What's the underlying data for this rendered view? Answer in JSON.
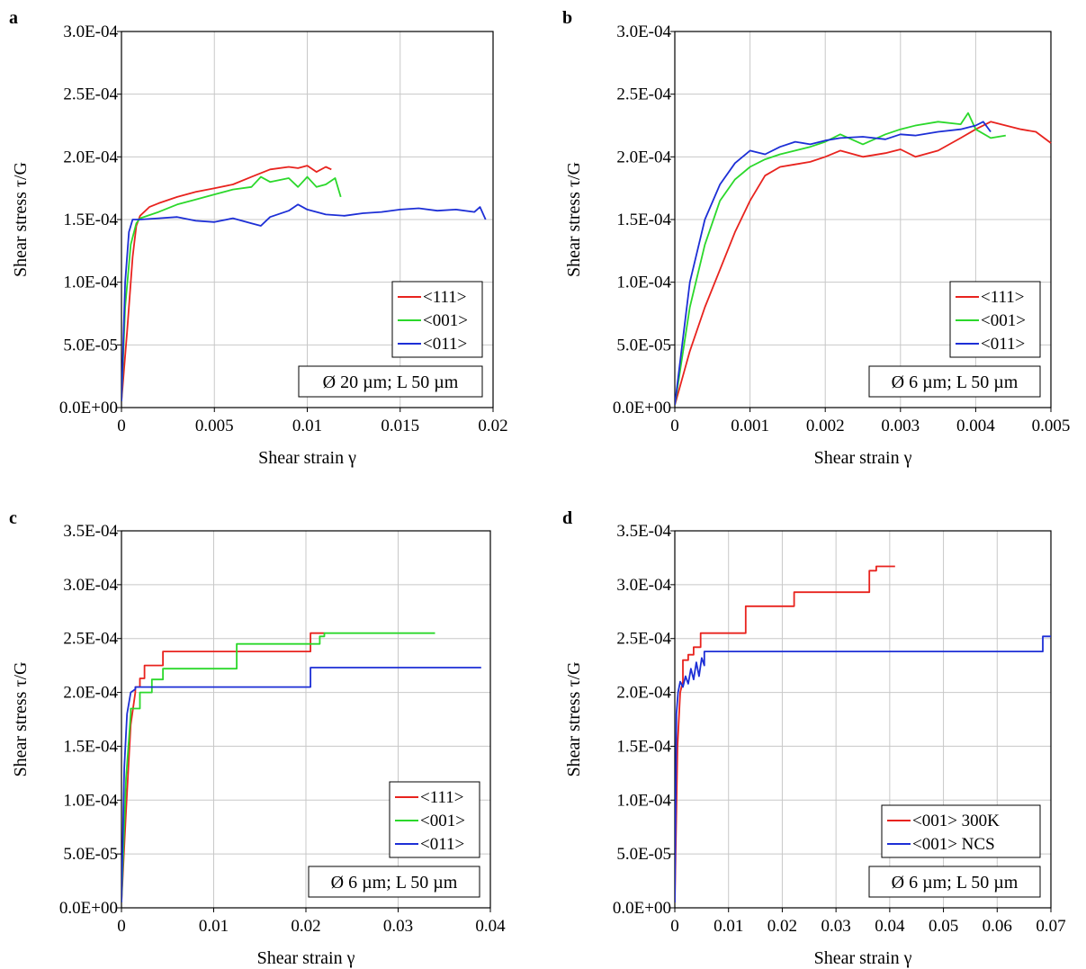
{
  "figure": {
    "panels": [
      "a",
      "b",
      "c",
      "d"
    ]
  },
  "chart_data": [
    {
      "panel": "a",
      "type": "line",
      "xlabel": "Shear strain γ",
      "ylabel": "Shear stress τ/G",
      "xlim": [
        0,
        0.02
      ],
      "ylim": [
        0,
        0.0003
      ],
      "xticks": [
        0,
        0.005,
        0.01,
        0.015,
        0.02
      ],
      "xtick_labels": [
        "0",
        "0.005",
        "0.01",
        "0.015",
        "0.02"
      ],
      "yticks": [
        0,
        5e-05,
        0.0001,
        0.00015,
        0.0002,
        0.00025,
        0.0003
      ],
      "ytick_labels": [
        "0.0E+00",
        "5.0E-05",
        "1.0E-04",
        "1.5E-04",
        "2.0E-04",
        "2.5E-04",
        "3.0E-04"
      ],
      "grid": true,
      "legend_position": "bottom-right",
      "note": "Ø 20 µm; L 50 µm",
      "series": [
        {
          "name": "<111>",
          "color": "#e8231e",
          "x": [
            0,
            0.0003,
            0.0006,
            0.0008,
            0.001,
            0.0015,
            0.002,
            0.003,
            0.004,
            0.005,
            0.006,
            0.007,
            0.008,
            0.009,
            0.0095,
            0.01,
            0.0105,
            0.011,
            0.0113
          ],
          "y": [
            5e-06,
            6e-05,
            0.00012,
            0.000145,
            0.000153,
            0.00016,
            0.000163,
            0.000168,
            0.000172,
            0.000175,
            0.000178,
            0.000184,
            0.00019,
            0.000192,
            0.000191,
            0.000193,
            0.000188,
            0.000192,
            0.00019
          ]
        },
        {
          "name": "<001>",
          "color": "#2bd82b",
          "x": [
            0,
            0.0002,
            0.0005,
            0.0008,
            0.001,
            0.002,
            0.003,
            0.004,
            0.005,
            0.006,
            0.007,
            0.0075,
            0.008,
            0.009,
            0.0095,
            0.01,
            0.0105,
            0.011,
            0.0115,
            0.0118
          ],
          "y": [
            5e-06,
            8e-05,
            0.00013,
            0.000147,
            0.000151,
            0.000156,
            0.000162,
            0.000166,
            0.00017,
            0.000174,
            0.000176,
            0.000184,
            0.00018,
            0.000183,
            0.000176,
            0.000184,
            0.000176,
            0.000178,
            0.000183,
            0.000168
          ]
        },
        {
          "name": "<011>",
          "color": "#1d2fd6",
          "x": [
            0,
            0.0002,
            0.0004,
            0.0006,
            0.001,
            0.002,
            0.003,
            0.004,
            0.005,
            0.006,
            0.007,
            0.0075,
            0.008,
            0.009,
            0.0095,
            0.01,
            0.011,
            0.012,
            0.013,
            0.014,
            0.015,
            0.016,
            0.017,
            0.018,
            0.019,
            0.0193,
            0.0196
          ],
          "y": [
            5e-06,
            0.0001,
            0.00014,
            0.00015,
            0.00015,
            0.000151,
            0.000152,
            0.000149,
            0.000148,
            0.000151,
            0.000147,
            0.000145,
            0.000152,
            0.000157,
            0.000162,
            0.000158,
            0.000154,
            0.000153,
            0.000155,
            0.000156,
            0.000158,
            0.000159,
            0.000157,
            0.000158,
            0.000156,
            0.00016,
            0.00015
          ]
        }
      ]
    },
    {
      "panel": "b",
      "type": "line",
      "xlabel": "Shear strain γ",
      "ylabel": "Shear stress τ/G",
      "xlim": [
        0,
        0.005
      ],
      "ylim": [
        0,
        0.0003
      ],
      "xticks": [
        0,
        0.001,
        0.002,
        0.003,
        0.004,
        0.005
      ],
      "xtick_labels": [
        "0",
        "0.001",
        "0.002",
        "0.003",
        "0.004",
        "0.005"
      ],
      "yticks": [
        0,
        5e-05,
        0.0001,
        0.00015,
        0.0002,
        0.00025,
        0.0003
      ],
      "ytick_labels": [
        "0.0E+00",
        "5.0E-05",
        "1.0E-04",
        "1.5E-04",
        "2.0E-04",
        "2.5E-04",
        "3.0E-04"
      ],
      "grid": true,
      "legend_position": "bottom-right",
      "note": "Ø 6 µm; L 50 µm",
      "series": [
        {
          "name": "<111>",
          "color": "#e8231e",
          "x": [
            0,
            0.0002,
            0.0004,
            0.0006,
            0.0008,
            0.001,
            0.0012,
            0.0014,
            0.0016,
            0.0018,
            0.002,
            0.0022,
            0.0025,
            0.0028,
            0.003,
            0.0032,
            0.0035,
            0.0038,
            0.004,
            0.0042,
            0.0044,
            0.0046,
            0.0048,
            0.005
          ],
          "y": [
            2e-06,
            4.5e-05,
            8e-05,
            0.00011,
            0.00014,
            0.000165,
            0.000185,
            0.000192,
            0.000194,
            0.000196,
            0.0002,
            0.000205,
            0.0002,
            0.000203,
            0.000206,
            0.0002,
            0.000205,
            0.000215,
            0.000222,
            0.000228,
            0.000225,
            0.000222,
            0.00022,
            0.000211
          ]
        },
        {
          "name": "<001>",
          "color": "#2bd82b",
          "x": [
            0,
            0.0002,
            0.0004,
            0.0006,
            0.0008,
            0.001,
            0.0012,
            0.0014,
            0.0016,
            0.0018,
            0.002,
            0.0022,
            0.0025,
            0.0028,
            0.003,
            0.0032,
            0.0035,
            0.0038,
            0.0039,
            0.004,
            0.0042,
            0.0044
          ],
          "y": [
            2e-06,
            8e-05,
            0.00013,
            0.000165,
            0.000182,
            0.000192,
            0.000198,
            0.000202,
            0.000205,
            0.000208,
            0.000212,
            0.000218,
            0.00021,
            0.000218,
            0.000222,
            0.000225,
            0.000228,
            0.000226,
            0.000235,
            0.000222,
            0.000215,
            0.000217
          ]
        },
        {
          "name": "<011>",
          "color": "#1d2fd6",
          "x": [
            0,
            0.0002,
            0.0004,
            0.0006,
            0.0008,
            0.001,
            0.0012,
            0.0014,
            0.0016,
            0.0018,
            0.002,
            0.0022,
            0.0025,
            0.0028,
            0.003,
            0.0032,
            0.0035,
            0.0038,
            0.004,
            0.0041,
            0.0042
          ],
          "y": [
            2e-06,
            0.0001,
            0.00015,
            0.000178,
            0.000195,
            0.000205,
            0.000202,
            0.000208,
            0.000212,
            0.00021,
            0.000213,
            0.000215,
            0.000216,
            0.000214,
            0.000218,
            0.000217,
            0.00022,
            0.000222,
            0.000225,
            0.000228,
            0.00022
          ]
        }
      ]
    },
    {
      "panel": "c",
      "type": "line",
      "xlabel": "Shear strain γ",
      "ylabel": "Shear stress τ/G",
      "xlim": [
        0,
        0.04
      ],
      "ylim": [
        0,
        0.00035
      ],
      "xticks": [
        0,
        0.01,
        0.02,
        0.03,
        0.04
      ],
      "xtick_labels": [
        "0",
        "0.01",
        "0.02",
        "0.03",
        "0.04"
      ],
      "yticks": [
        0,
        5e-05,
        0.0001,
        0.00015,
        0.0002,
        0.00025,
        0.0003,
        0.00035
      ],
      "ytick_labels": [
        "0.0E+00",
        "5.0E-05",
        "1.0E-04",
        "1.5E-04",
        "2.0E-04",
        "2.5E-04",
        "3.0E-04",
        "3.5E-04"
      ],
      "grid": true,
      "legend_position": "bottom-right",
      "note": "Ø 6 µm; L 50 µm",
      "series": [
        {
          "name": "<111>",
          "color": "#e8231e",
          "x": [
            0,
            0.0005,
            0.001,
            0.0015,
            0.0015,
            0.002,
            0.002,
            0.0025,
            0.0025,
            0.0045,
            0.0045,
            0.0205,
            0.0205,
            0.022
          ],
          "y": [
            5e-06,
            9e-05,
            0.00017,
            0.0002,
            0.000205,
            0.000205,
            0.000213,
            0.000213,
            0.000225,
            0.000225,
            0.000238,
            0.000238,
            0.000255,
            0.000255
          ]
        },
        {
          "name": "<001>",
          "color": "#2bd82b",
          "x": [
            0,
            0.0005,
            0.001,
            0.001,
            0.002,
            0.002,
            0.0033,
            0.0033,
            0.0045,
            0.0045,
            0.0125,
            0.0125,
            0.0215,
            0.0215,
            0.022,
            0.022,
            0.034
          ],
          "y": [
            5e-06,
            0.00012,
            0.00018,
            0.000185,
            0.000185,
            0.0002,
            0.0002,
            0.000212,
            0.000212,
            0.000222,
            0.000222,
            0.000245,
            0.000245,
            0.000252,
            0.000252,
            0.000255,
            0.000255
          ]
        },
        {
          "name": "<011>",
          "color": "#1d2fd6",
          "x": [
            0,
            0.0003,
            0.0006,
            0.001,
            0.0015,
            0.0015,
            0.0205,
            0.0205,
            0.039
          ],
          "y": [
            5e-06,
            0.00013,
            0.00018,
            0.0002,
            0.000203,
            0.000205,
            0.000205,
            0.000223,
            0.000223
          ]
        }
      ]
    },
    {
      "panel": "d",
      "type": "line",
      "xlabel": "Shear strain γ",
      "ylabel": "Shear stress τ/G",
      "xlim": [
        0,
        0.07
      ],
      "ylim": [
        0,
        0.00035
      ],
      "xticks": [
        0,
        0.01,
        0.02,
        0.03,
        0.04,
        0.05,
        0.06,
        0.07
      ],
      "xtick_labels": [
        "0",
        "0.01",
        "0.02",
        "0.03",
        "0.04",
        "0.05",
        "0.06",
        "0.07"
      ],
      "yticks": [
        0,
        5e-05,
        0.0001,
        0.00015,
        0.0002,
        0.00025,
        0.0003,
        0.00035
      ],
      "ytick_labels": [
        "0.0E+00",
        "5.0E-05",
        "1.0E-04",
        "1.5E-04",
        "2.0E-04",
        "2.5E-04",
        "3.0E-04",
        "3.5E-04"
      ],
      "grid": true,
      "legend_position": "bottom-right",
      "note": "Ø 6 µm; L 50 µm",
      "series": [
        {
          "name": "<001> 300K",
          "color": "#e8231e",
          "x": [
            0,
            0.0005,
            0.001,
            0.0015,
            0.0015,
            0.0025,
            0.0025,
            0.0035,
            0.0035,
            0.0048,
            0.0048,
            0.0132,
            0.0132,
            0.0222,
            0.0222,
            0.0362,
            0.0362,
            0.0375,
            0.0375,
            0.041
          ],
          "y": [
            5e-06,
            0.00015,
            0.0002,
            0.00021,
            0.00023,
            0.00023,
            0.000235,
            0.000235,
            0.000242,
            0.000242,
            0.000255,
            0.000255,
            0.00028,
            0.00028,
            0.000293,
            0.000293,
            0.000313,
            0.000313,
            0.000317,
            0.000317
          ]
        },
        {
          "name": "<001> NCS",
          "color": "#1d2fd6",
          "x": [
            0,
            0.0003,
            0.0006,
            0.001,
            0.0015,
            0.002,
            0.0025,
            0.003,
            0.0035,
            0.004,
            0.0045,
            0.005,
            0.0055,
            0.0055,
            0.0685,
            0.0685,
            0.07
          ],
          "y": [
            5e-06,
            0.00018,
            0.0002,
            0.00021,
            0.000205,
            0.000215,
            0.000208,
            0.000222,
            0.000212,
            0.000228,
            0.000215,
            0.000232,
            0.000225,
            0.000238,
            0.000238,
            0.000252,
            0.000252
          ]
        }
      ]
    }
  ]
}
